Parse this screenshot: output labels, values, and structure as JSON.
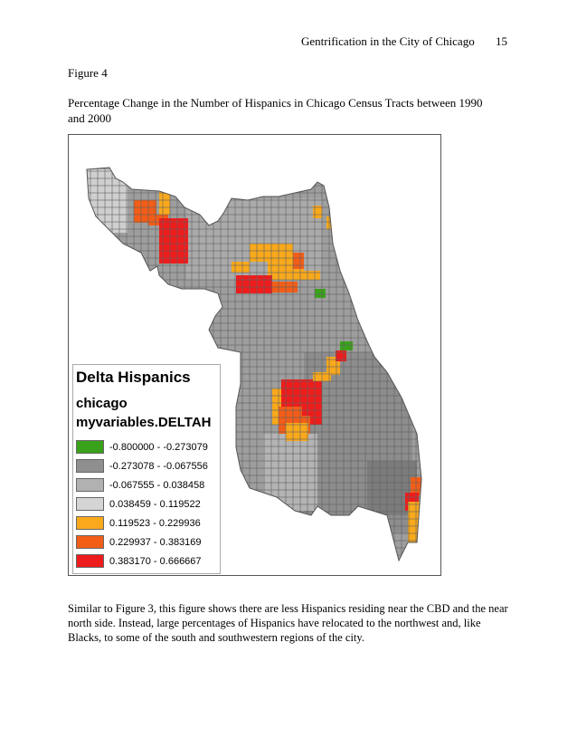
{
  "header": {
    "running_head": "Gentrification in the City of Chicago",
    "page_number": "15"
  },
  "figure": {
    "label": "Figure 4",
    "caption": "Percentage Change in the Number of Hispanics in Chicago Census Tracts between 1990 and 2000",
    "map": {
      "legend": {
        "title": "Delta Hispanics",
        "layer": "chicago",
        "field": "myvariables.DELTAH",
        "classes": [
          {
            "range": "-0.800000 - -0.273079",
            "color": "#3aa21a"
          },
          {
            "range": "-0.273078 - -0.067556",
            "color": "#8f8f8f"
          },
          {
            "range": "-0.067555 - 0.038458",
            "color": "#b1b1b1"
          },
          {
            "range": "0.038459 - 0.119522",
            "color": "#d5d5d5"
          },
          {
            "range": "0.119523 - 0.229936",
            "color": "#f9a91b"
          },
          {
            "range": "0.229937 - 0.383169",
            "color": "#f25d18"
          },
          {
            "range": "0.383170 - 0.666667",
            "color": "#ee1c1c"
          }
        ]
      }
    }
  },
  "body": {
    "paragraph": "Similar to Figure 3, this figure shows there are less Hispanics residing near the CBD and the near north side.  Instead, large percentages of Hispanics have relocated to the northwest and, like Blacks, to some of the south and southwestern regions of the city."
  }
}
